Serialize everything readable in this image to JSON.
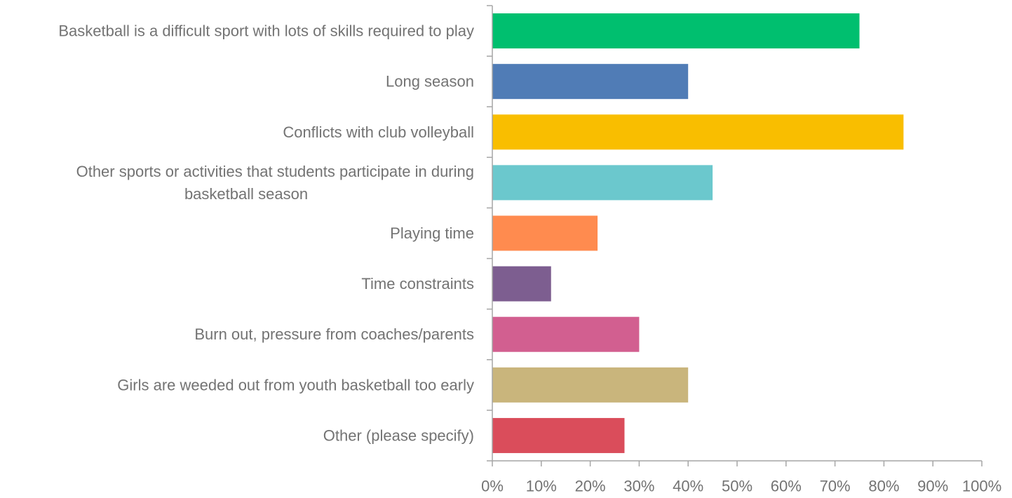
{
  "chart_data": {
    "type": "bar",
    "orientation": "horizontal",
    "title": "",
    "xlabel": "",
    "ylabel": "",
    "xlim": [
      0,
      100
    ],
    "grid": false,
    "legend": "none",
    "tick_labels": [
      "0%",
      "10%",
      "20%",
      "30%",
      "40%",
      "50%",
      "60%",
      "70%",
      "80%",
      "90%",
      "100%"
    ],
    "categories": [
      [
        "Basketball is a difficult sport with lots of skills required to play"
      ],
      [
        "Long season"
      ],
      [
        "Conflicts with club volleyball"
      ],
      [
        "Other sports or activities that students participate in during",
        "basketball season"
      ],
      [
        "Playing time"
      ],
      [
        "Time constraints"
      ],
      [
        "Burn out, pressure from coaches/parents"
      ],
      [
        "Girls are weeded out from youth basketball too early"
      ],
      [
        "Other (please specify)"
      ]
    ],
    "values": [
      75,
      40,
      84,
      45,
      21.5,
      12,
      30,
      40,
      27
    ],
    "colors": [
      "#00BF6F",
      "#507CB6",
      "#F9BE00",
      "#6BC8CD",
      "#FF8B4F",
      "#7D5E90",
      "#D25F90",
      "#C9B57C",
      "#DA4D5B"
    ]
  }
}
